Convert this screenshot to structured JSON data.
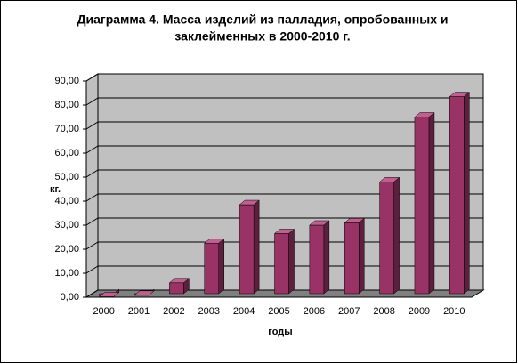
{
  "chart_data": {
    "type": "bar3d",
    "title": [
      "Диаграмма 4. Масса изделий из палладия, опробованных и",
      "заклейменных в 2000-2010  г."
    ],
    "y_label": "кг.",
    "x_label": "годы",
    "categories": [
      "2000",
      "2001",
      "2002",
      "2003",
      "2004",
      "2005",
      "2006",
      "2007",
      "2008",
      "2009",
      "2010"
    ],
    "values": [
      0.2,
      0.8,
      6,
      22.5,
      38.5,
      26.5,
      30,
      31,
      48,
      75,
      83.5
    ],
    "color": "#993366",
    "ylim": [
      0,
      90
    ],
    "yticks": [
      {
        "value": 0,
        "label": "0,00"
      },
      {
        "value": 10,
        "label": "10,00"
      },
      {
        "value": 20,
        "label": "20,00"
      },
      {
        "value": 30,
        "label": "30,00"
      },
      {
        "value": 40,
        "label": "40,00"
      },
      {
        "value": 50,
        "label": "50,00"
      },
      {
        "value": 60,
        "label": "60,00"
      },
      {
        "value": 70,
        "label": "70,00"
      },
      {
        "value": 80,
        "label": "80,00"
      },
      {
        "value": 90,
        "label": "90,00"
      }
    ],
    "grid": true
  }
}
